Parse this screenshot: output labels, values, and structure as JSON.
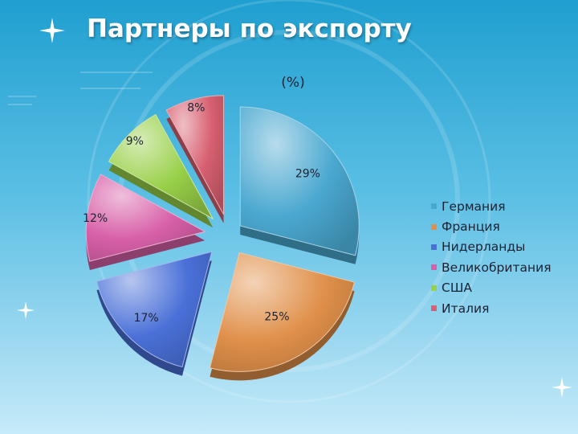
{
  "slide": {
    "title": "Партнеры по экспорту"
  },
  "chart_data": {
    "type": "pie",
    "title": "(%)",
    "categories": [
      "Германия",
      "Франция",
      "Нидерланды",
      "Великобритания",
      "США",
      "Италия"
    ],
    "values": [
      29,
      25,
      17,
      12,
      9,
      8
    ],
    "labels": [
      "29%",
      "25%",
      "17%",
      "12%",
      "9%",
      "8%"
    ],
    "legend_position": "right",
    "colors": [
      "#4aa8d0",
      "#e0904a",
      "#4a70d8",
      "#d860a8",
      "#98d048",
      "#d86070"
    ],
    "style": "3d-exploded"
  }
}
